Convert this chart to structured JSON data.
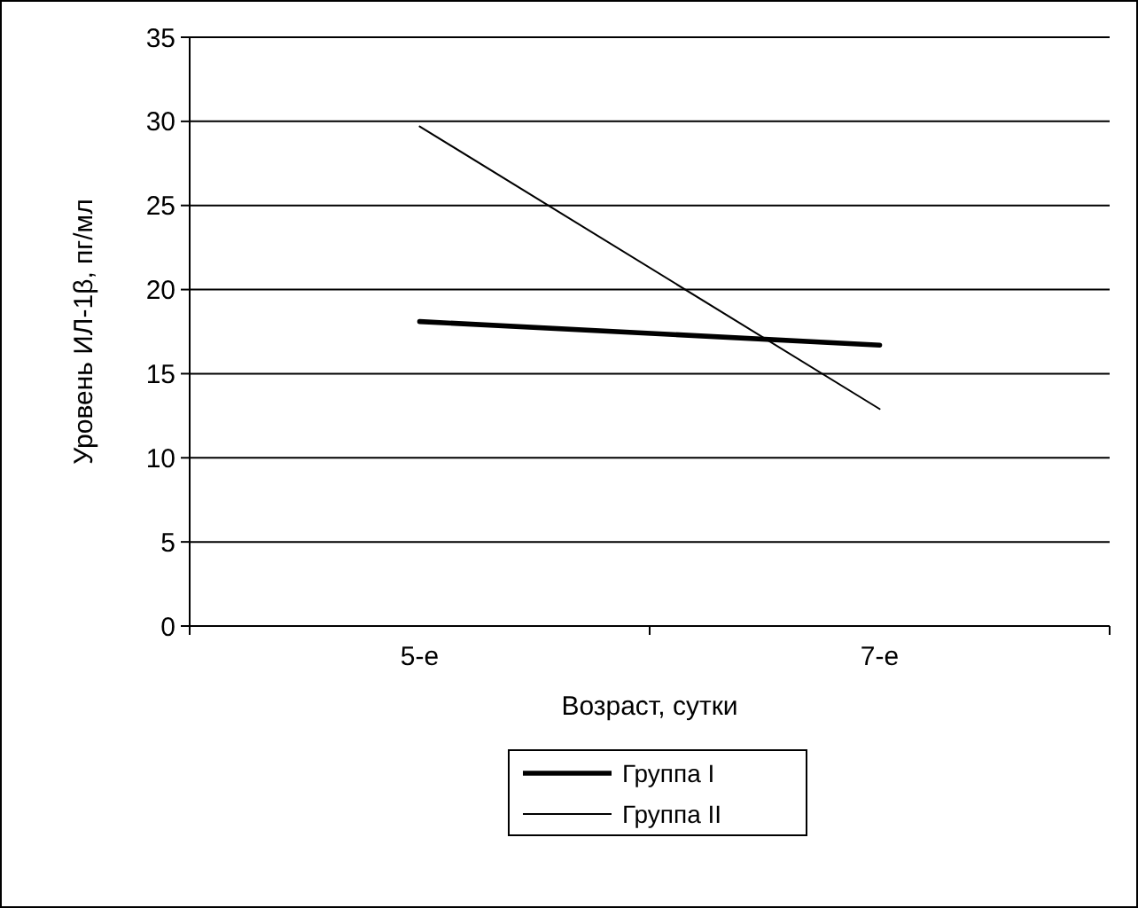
{
  "chart_data": {
    "type": "line",
    "xlabel": "Возраст, сутки",
    "ylabel": "Уровень ИЛ-1β, пг/мл",
    "categories": [
      "5-е",
      "7-е"
    ],
    "series": [
      {
        "name": "Группа I",
        "color": "#000000",
        "values": [
          18.1,
          16.7
        ]
      },
      {
        "name": "Группа II",
        "color": "#000000",
        "values": [
          29.7,
          12.9
        ]
      }
    ],
    "ylim": [
      0,
      35
    ],
    "yticks": [
      0,
      5,
      10,
      15,
      20,
      25,
      30,
      35
    ],
    "grid": "y",
    "legend": "bottom",
    "marker": "none",
    "line_style": "solid"
  }
}
